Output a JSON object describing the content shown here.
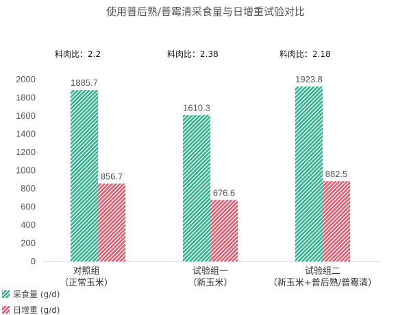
{
  "chart_data": {
    "type": "bar",
    "title": "使用普后熟/普霉清采食量与日增重试验对比",
    "categories": [
      {
        "line1": "对照组",
        "line2": "（正常玉米）"
      },
      {
        "line1": "试验组一",
        "line2": "（新玉米）"
      },
      {
        "line1": "试验组二",
        "line2": "（新玉米+普后熟/普霉清）"
      }
    ],
    "ratio_prefix": "料肉比：",
    "ratios": [
      "2.2",
      "2.38",
      "2.18"
    ],
    "series": [
      {
        "name": "采食量 (g/d)",
        "values": [
          1885.7,
          1610.3,
          1923.8
        ],
        "labels": [
          "1885.7",
          "1610.3",
          "1923.8"
        ],
        "color": "#2db38a"
      },
      {
        "name": "日增重 (g/d)",
        "values": [
          856.7,
          676.6,
          882.5
        ],
        "labels": [
          "856.7",
          "676.6",
          "882.5"
        ],
        "color": "#e05a6e"
      }
    ],
    "ylim": [
      0,
      2000
    ],
    "yticks": [
      0,
      200,
      400,
      600,
      800,
      1000,
      1200,
      1400,
      1600,
      1800,
      2000
    ],
    "grid": false,
    "legend_position": "bottom-left"
  }
}
